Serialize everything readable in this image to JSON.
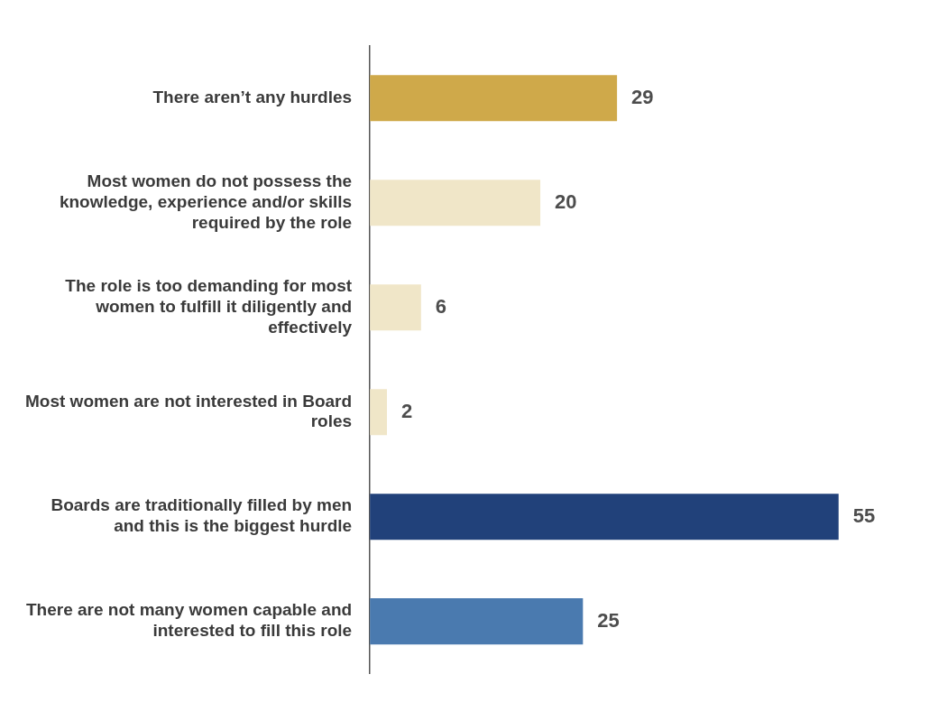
{
  "chart_data": {
    "type": "bar",
    "orientation": "horizontal",
    "categories": [
      "There aren’t any hurdles",
      "Most women do not possess the knowledge, experience and/or skills required by the role",
      "The role is too demanding for most women to fulfill it diligently and effectively",
      "Most women are not interested in Board roles",
      "Boards are traditionally filled by men and this is the biggest hurdle",
      "There are not many women capable and interested to fill this role"
    ],
    "values": [
      29,
      20,
      6,
      2,
      55,
      25
    ],
    "colors": [
      "#cfa94a",
      "#f0e6c8",
      "#f0e6c8",
      "#f0e6c8",
      "#21417a",
      "#4a7aaf"
    ],
    "data_labels": true,
    "grid": false,
    "legend": false
  }
}
